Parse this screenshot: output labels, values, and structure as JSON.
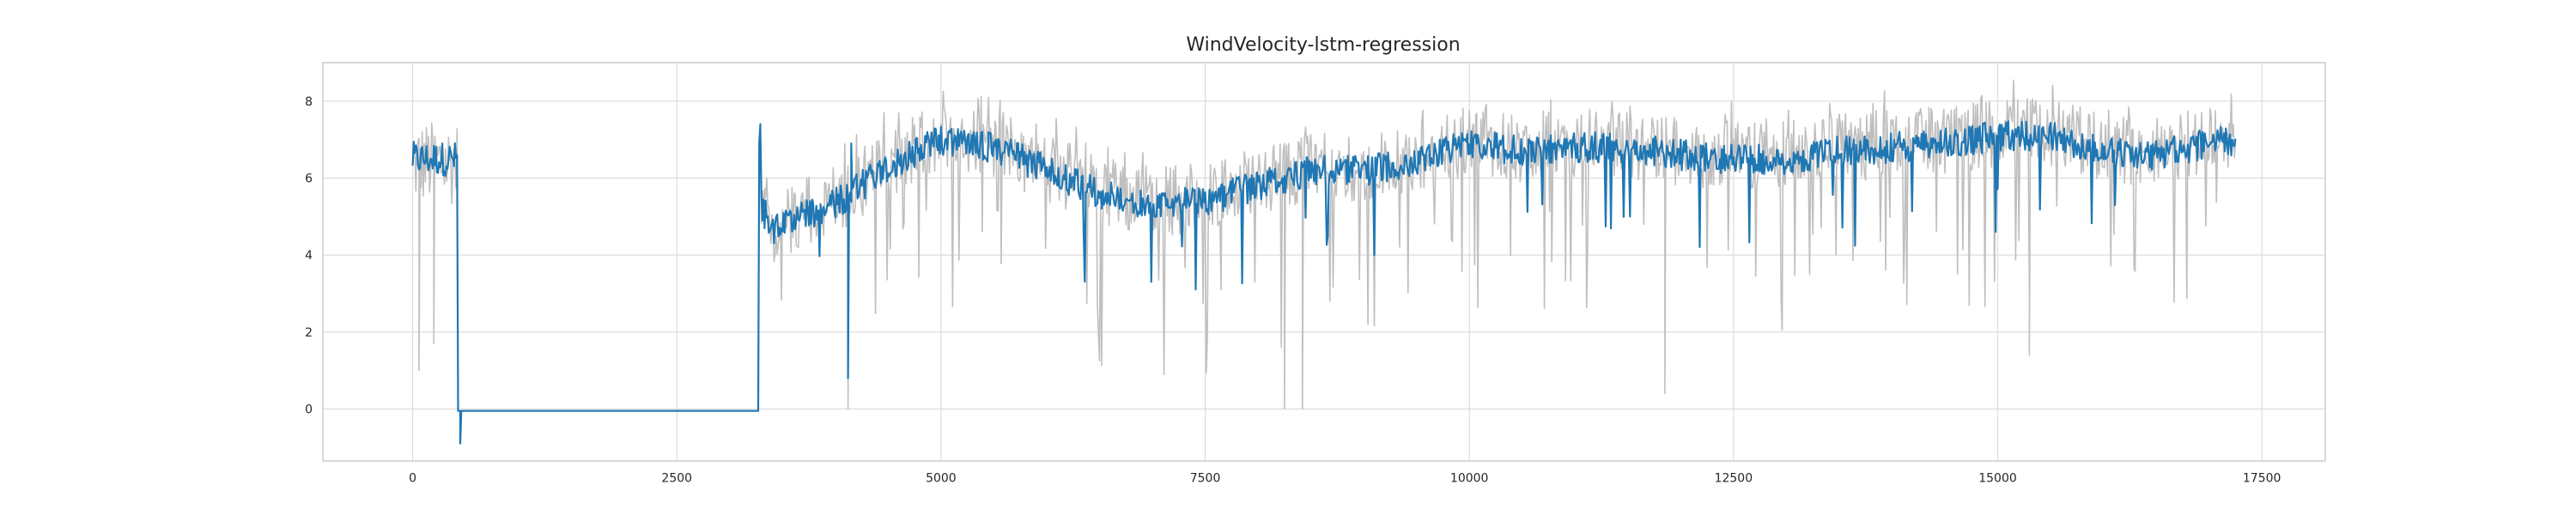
{
  "chart_data": {
    "type": "line",
    "title": "WindVelocity-lstm-regression",
    "xlabel": "",
    "ylabel": "",
    "xlim": [
      -850,
      18100
    ],
    "ylim": [
      -1.35,
      9.0
    ],
    "xticks": [
      0,
      2500,
      5000,
      7500,
      10000,
      12500,
      15000,
      17500
    ],
    "xtick_labels": [
      "0",
      "2500",
      "5000",
      "7500",
      "10000",
      "12500",
      "15000",
      "17500"
    ],
    "yticks": [
      0,
      2,
      4,
      6,
      8
    ],
    "ytick_labels": [
      "0",
      "2",
      "4",
      "6",
      "8"
    ],
    "grid": true,
    "legend": "none",
    "x_range": [
      0,
      17250
    ],
    "step": 10,
    "segments": [
      {
        "x_start": 0,
        "x_end": 430,
        "level": 6.5
      },
      {
        "x_start": 430,
        "x_end": 3280,
        "level": -0.05
      },
      {
        "x_start": 3280,
        "x_end": 17250,
        "control_points": [
          [
            3300,
            5.3
          ],
          [
            3400,
            4.6
          ],
          [
            3700,
            5.0
          ],
          [
            4100,
            5.5
          ],
          [
            4500,
            6.3
          ],
          [
            5000,
            7.0
          ],
          [
            5500,
            6.8
          ],
          [
            6000,
            6.2
          ],
          [
            6500,
            5.6
          ],
          [
            7000,
            5.3
          ],
          [
            7500,
            5.4
          ],
          [
            8000,
            5.8
          ],
          [
            8500,
            6.2
          ],
          [
            9000,
            6.2
          ],
          [
            9500,
            6.4
          ],
          [
            10000,
            6.9
          ],
          [
            10500,
            6.7
          ],
          [
            11000,
            6.8
          ],
          [
            11500,
            6.8
          ],
          [
            12000,
            6.6
          ],
          [
            12500,
            6.5
          ],
          [
            13000,
            6.5
          ],
          [
            13500,
            6.7
          ],
          [
            14000,
            6.8
          ],
          [
            14500,
            6.9
          ],
          [
            15000,
            7.1
          ],
          [
            15500,
            7.1
          ],
          [
            16000,
            6.7
          ],
          [
            16500,
            6.6
          ],
          [
            17000,
            6.9
          ],
          [
            17250,
            7.0
          ]
        ]
      }
    ],
    "highlights": {
      "predicted_spikes": [
        [
          450,
          -0.9
        ],
        [
          3290,
          7.3
        ],
        [
          4150,
          6.9
        ],
        [
          4120,
          0.8
        ]
      ],
      "actual_dips": [
        [
          60,
          1.0
        ],
        [
          200,
          1.7
        ],
        [
          4120,
          0.0
        ],
        [
          8250,
          0.0
        ],
        [
          8420,
          0.0
        ],
        [
          11850,
          0.4
        ],
        [
          15300,
          1.4
        ]
      ]
    },
    "series": [
      {
        "name": "",
        "role": "actual",
        "color": "#bfbfbf",
        "noise": 0.9
      },
      {
        "name": "",
        "role": "predicted",
        "color": "#1f77b4",
        "noise": 0.35
      }
    ]
  }
}
